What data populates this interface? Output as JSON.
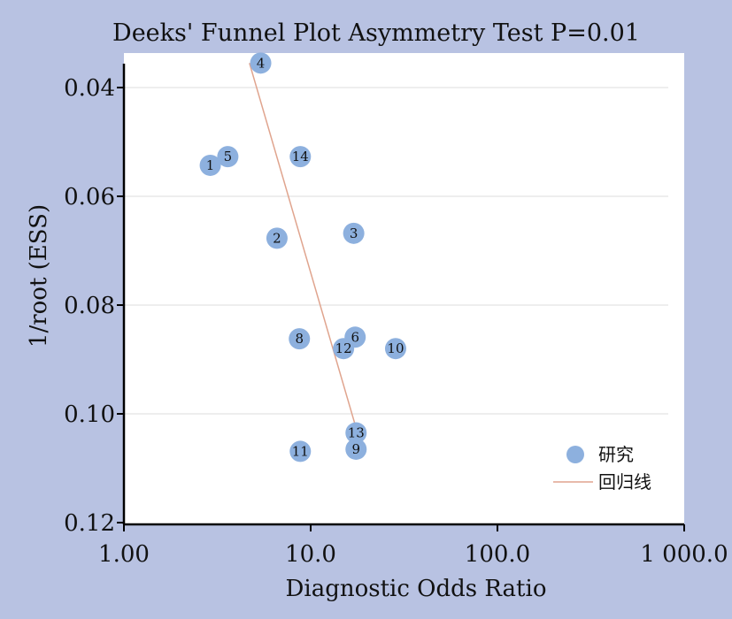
{
  "colors": {
    "background": "#b8c2e2",
    "plot_background": "#ffffff",
    "point": "#8db0de",
    "regression_line": "#e0a48e",
    "grid": "#dddddd"
  },
  "chart_data": {
    "type": "scatter",
    "title": "Deeks' Funnel Plot Asymmetry Test P=0.01",
    "xlabel": "Diagnostic Odds Ratio",
    "ylabel": "1/root (ESS)",
    "x_scale": "log",
    "xlim": [
      1,
      1000
    ],
    "ylim": [
      0.12,
      0.035
    ],
    "y_inverted": true,
    "grid": "horizontal",
    "legend_position": "bottom-right",
    "x_ticks": [
      1,
      10,
      100,
      1000
    ],
    "x_tick_labels": [
      "1.00",
      "10.0",
      "100.0",
      "1 000.0"
    ],
    "y_ticks": [
      0.04,
      0.06,
      0.08,
      0.1,
      0.12
    ],
    "y_tick_labels": [
      "0.04",
      "0.06",
      "0.08",
      "0.10",
      "0.12"
    ],
    "series": [
      {
        "name": "研究",
        "type": "scatter",
        "points": [
          {
            "label": "1",
            "x": 2.9,
            "y": 0.0543
          },
          {
            "label": "2",
            "x": 6.6,
            "y": 0.0677
          },
          {
            "label": "3",
            "x": 17.0,
            "y": 0.0668
          },
          {
            "label": "4",
            "x": 5.4,
            "y": 0.0355
          },
          {
            "label": "5",
            "x": 3.6,
            "y": 0.0527
          },
          {
            "label": "6",
            "x": 17.3,
            "y": 0.0859
          },
          {
            "label": "8",
            "x": 8.7,
            "y": 0.0862
          },
          {
            "label": "9",
            "x": 17.5,
            "y": 0.1065
          },
          {
            "label": "10",
            "x": 28.5,
            "y": 0.088
          },
          {
            "label": "11",
            "x": 8.8,
            "y": 0.1069
          },
          {
            "label": "12",
            "x": 15.0,
            "y": 0.088
          },
          {
            "label": "13",
            "x": 17.5,
            "y": 0.1035
          },
          {
            "label": "14",
            "x": 8.8,
            "y": 0.0527
          }
        ]
      },
      {
        "name": "回归线",
        "type": "line",
        "points": [
          {
            "x": 4.7,
            "y": 0.0355
          },
          {
            "x": 17.3,
            "y": 0.102
          }
        ]
      }
    ]
  }
}
